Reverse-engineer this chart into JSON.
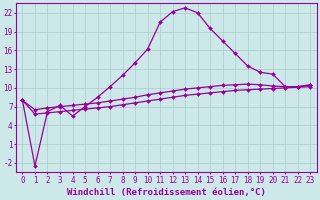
{
  "xlabel": "Windchill (Refroidissement éolien,°C)",
  "background_color": "#cce8e8",
  "grid_color": "#aacccc",
  "line_color": "#990099",
  "xlim": [
    -0.5,
    23.5
  ],
  "ylim": [
    -3.5,
    23.5
  ],
  "xticks": [
    0,
    1,
    2,
    3,
    4,
    5,
    6,
    7,
    8,
    9,
    10,
    11,
    12,
    13,
    14,
    15,
    16,
    17,
    18,
    19,
    20,
    21,
    22,
    23
  ],
  "yticks": [
    -2,
    1,
    4,
    7,
    10,
    13,
    16,
    19,
    22
  ],
  "curve1_x": [
    0,
    1,
    2,
    3,
    4,
    5,
    6,
    7,
    8,
    9,
    10,
    11,
    12,
    13,
    14,
    15,
    16,
    17,
    18,
    19,
    20,
    21,
    22,
    23
  ],
  "curve1_y": [
    8,
    -2.5,
    6.2,
    7.2,
    5.5,
    7.0,
    8.5,
    10.2,
    12.0,
    14.0,
    16.2,
    20.5,
    22.2,
    22.8,
    22.0,
    19.5,
    17.5,
    15.5,
    13.5,
    12.5,
    12.2,
    10.2,
    10.2,
    10.5
  ],
  "curve2_x": [
    0,
    1,
    2,
    3,
    4,
    5,
    6,
    7,
    8,
    9,
    10,
    11,
    12,
    13,
    14,
    15,
    16,
    17,
    18,
    19,
    20,
    21,
    22,
    23
  ],
  "curve2_y": [
    8.0,
    6.5,
    6.8,
    7.0,
    7.2,
    7.4,
    7.6,
    7.9,
    8.2,
    8.5,
    8.9,
    9.2,
    9.5,
    9.8,
    10.0,
    10.2,
    10.4,
    10.5,
    10.6,
    10.5,
    10.3,
    10.2,
    10.2,
    10.4
  ],
  "curve3_x": [
    0,
    1,
    2,
    3,
    4,
    5,
    6,
    7,
    8,
    9,
    10,
    11,
    12,
    13,
    14,
    15,
    16,
    17,
    18,
    19,
    20,
    21,
    22,
    23
  ],
  "curve3_y": [
    8.0,
    5.8,
    6.0,
    6.2,
    6.4,
    6.6,
    6.8,
    7.0,
    7.3,
    7.6,
    7.9,
    8.2,
    8.5,
    8.8,
    9.0,
    9.2,
    9.4,
    9.6,
    9.7,
    9.8,
    9.9,
    10.0,
    10.1,
    10.2
  ],
  "tick_fontsize": 5.5,
  "label_fontsize": 6.5
}
